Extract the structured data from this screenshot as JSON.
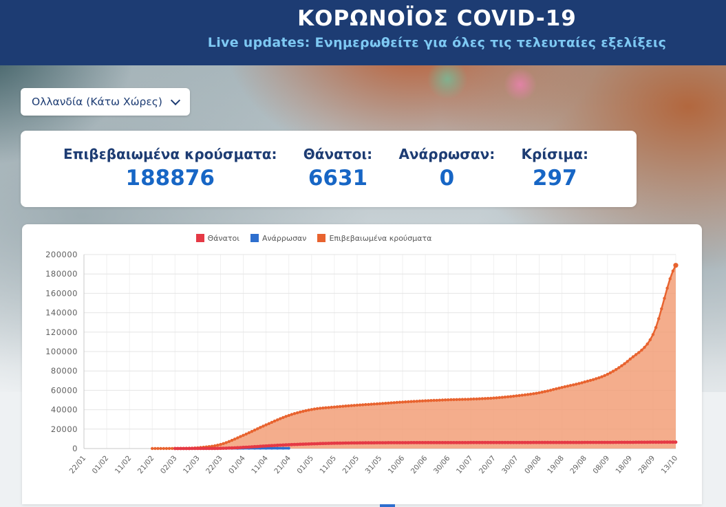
{
  "header": {
    "title": "ΚΟΡΩΝΟΪΟΣ COVID-19",
    "subtitle": "Live updates: Ενημερωθείτε για όλες τις τελευταίες εξελίξεις"
  },
  "country_selector": {
    "value": "Ολλανδία (Κάτω Χώρες)"
  },
  "stats": {
    "items": [
      {
        "label": "Επιβεβαιωμένα κρούσματα:",
        "value": "188876"
      },
      {
        "label": "Θάνατοι:",
        "value": "6631"
      },
      {
        "label": "Ανάρρωσαν:",
        "value": "0"
      },
      {
        "label": "Κρίσιμα:",
        "value": "297"
      }
    ]
  },
  "colors": {
    "header_bg": "#1d3c73",
    "subtitle_text": "#7ec9f3",
    "stat_label": "#1d3c73",
    "stat_value": "#1766c5",
    "deaths_series": "#e53945",
    "recovered_series": "#2e6fce",
    "confirmed_series": "#e8632f",
    "confirmed_fill": "#f29b73"
  },
  "chart_data": {
    "type": "area",
    "title": "",
    "x": [
      "22/01",
      "01/02",
      "11/02",
      "21/02",
      "02/03",
      "12/03",
      "22/03",
      "01/04",
      "11/04",
      "21/04",
      "01/05",
      "11/05",
      "21/05",
      "31/05",
      "10/06",
      "20/06",
      "30/06",
      "10/07",
      "20/07",
      "30/07",
      "09/08",
      "19/08",
      "29/08",
      "08/09",
      "18/09",
      "28/09",
      "13/10"
    ],
    "series": [
      {
        "name": "Θάνατοι",
        "type": "line",
        "color": "#e53945",
        "values": [
          null,
          null,
          null,
          null,
          4,
          58,
          179,
          1173,
          2643,
          3916,
          4795,
          5456,
          5775,
          5951,
          6042,
          6095,
          6113,
          6136,
          6160,
          6184,
          6215,
          6243,
          6277,
          6321,
          6406,
          6507,
          6631
        ]
      },
      {
        "name": "Ανάρρωσαν",
        "type": "line",
        "color": "#2e6fce",
        "values": [
          null,
          null,
          null,
          null,
          null,
          2,
          100,
          250,
          250,
          250,
          null,
          null,
          null,
          null,
          null,
          null,
          null,
          null,
          null,
          null,
          null,
          null,
          null,
          null,
          null,
          null,
          null
        ]
      },
      {
        "name": "Επιβεβαιωμένα κρούσματα",
        "type": "area",
        "color": "#e8632f",
        "fill": "#f29b73",
        "values": [
          null,
          null,
          null,
          0,
          128,
          804,
          4204,
          13614,
          24413,
          34134,
          40236,
          42788,
          44700,
          46257,
          47903,
          49204,
          50223,
          50921,
          52073,
          54301,
          57501,
          63002,
          68624,
          76548,
          92254,
          117551,
          188876
        ]
      }
    ],
    "ylim": [
      0,
      200000
    ],
    "y_ticks": [
      0,
      20000,
      40000,
      60000,
      80000,
      100000,
      120000,
      140000,
      160000,
      180000,
      200000
    ],
    "grid": true,
    "legend_position": "top"
  }
}
